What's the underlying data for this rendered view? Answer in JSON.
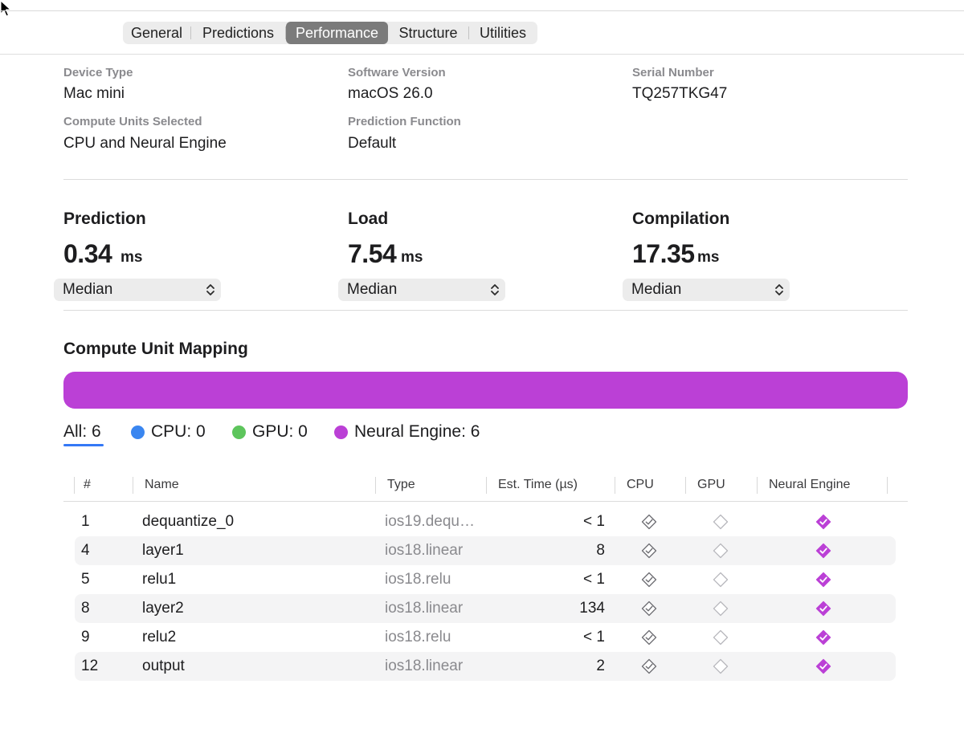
{
  "tabs": [
    {
      "label": "General",
      "active": false
    },
    {
      "label": "Predictions",
      "active": false
    },
    {
      "label": "Performance",
      "active": true
    },
    {
      "label": "Structure",
      "active": false
    },
    {
      "label": "Utilities",
      "active": false
    }
  ],
  "info": {
    "device_type": {
      "label": "Device Type",
      "value": "Mac mini"
    },
    "software_version": {
      "label": "Software Version",
      "value": "macOS 26.0"
    },
    "serial_number": {
      "label": "Serial Number",
      "value": "TQ257TKG47"
    },
    "compute_units": {
      "label": "Compute Units Selected",
      "value": "CPU and Neural Engine"
    },
    "prediction_function": {
      "label": "Prediction Function",
      "value": "Default"
    }
  },
  "metrics": [
    {
      "title": "Prediction",
      "value": "0.34",
      "unit": "ms",
      "stat": "Median"
    },
    {
      "title": "Load",
      "value": "7.54",
      "unit": "ms",
      "stat": "Median"
    },
    {
      "title": "Compilation",
      "value": "17.35",
      "unit": "ms",
      "stat": "Median"
    }
  ],
  "mapping": {
    "title": "Compute Unit Mapping",
    "bar_color": "#bb40d6",
    "legend": [
      {
        "label": "All: 6",
        "color": null,
        "selected": true
      },
      {
        "label": "CPU: 0",
        "color": "#3a86f0"
      },
      {
        "label": "GPU: 0",
        "color": "#5dc55c"
      },
      {
        "label": "Neural Engine: 6",
        "color": "#bb40d6"
      }
    ]
  },
  "table": {
    "headers": [
      "#",
      "Name",
      "Type",
      "Est. Time (µs)",
      "CPU",
      "GPU",
      "Neural Engine"
    ],
    "rows": [
      {
        "index": "1",
        "name": "dequantize_0",
        "type": "ios19.dequ…",
        "time": "< 1",
        "cpu": "supported",
        "gpu": "unsupported",
        "ne": "selected"
      },
      {
        "index": "4",
        "name": "layer1",
        "type": "ios18.linear",
        "time": "8",
        "cpu": "supported",
        "gpu": "unsupported",
        "ne": "selected"
      },
      {
        "index": "5",
        "name": "relu1",
        "type": "ios18.relu",
        "time": "< 1",
        "cpu": "supported",
        "gpu": "unsupported",
        "ne": "selected"
      },
      {
        "index": "8",
        "name": "layer2",
        "type": "ios18.linear",
        "time": "134",
        "cpu": "supported",
        "gpu": "unsupported",
        "ne": "selected"
      },
      {
        "index": "9",
        "name": "relu2",
        "type": "ios18.relu",
        "time": "< 1",
        "cpu": "supported",
        "gpu": "unsupported",
        "ne": "selected"
      },
      {
        "index": "12",
        "name": "output",
        "type": "ios18.linear",
        "time": "2",
        "cpu": "supported",
        "gpu": "unsupported",
        "ne": "selected"
      }
    ]
  },
  "colors": {
    "accent": "#3478f6",
    "neural_engine": "#bb40d6",
    "selected_tab": "#7b7b7b"
  }
}
